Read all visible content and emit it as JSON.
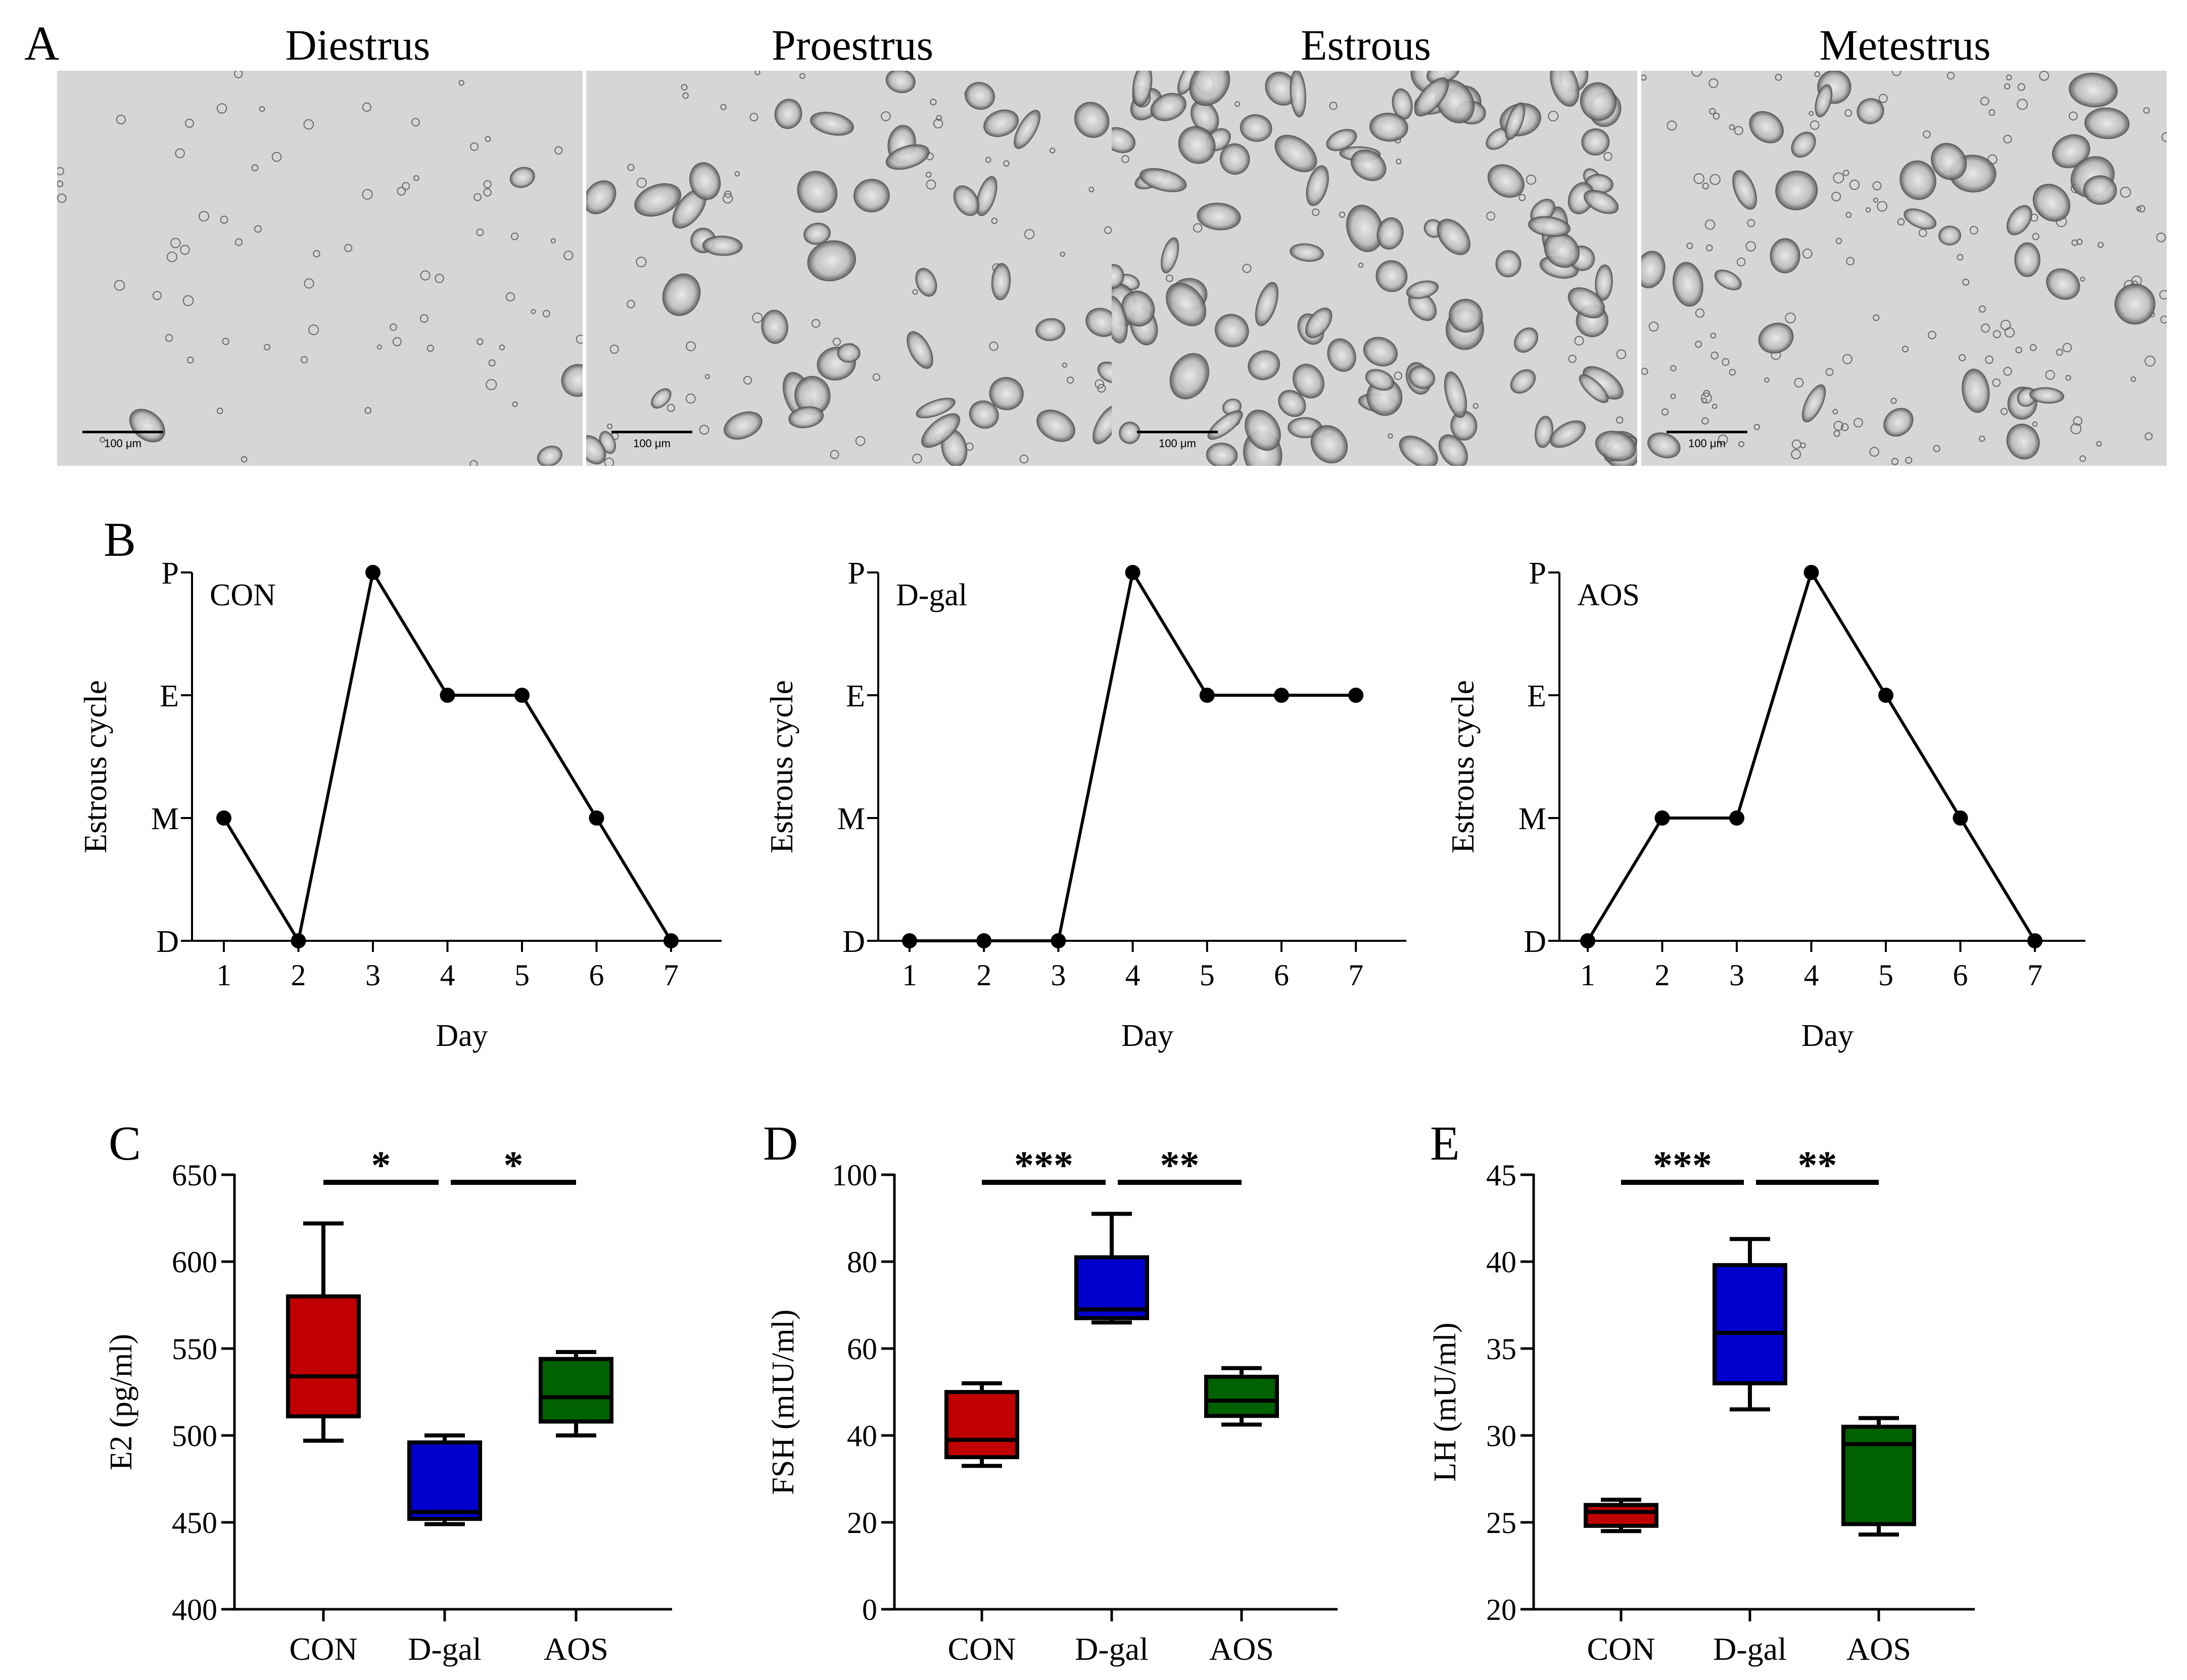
{
  "panel_a": {
    "letter": "A",
    "scale_bar_text": "100 μm",
    "stages": [
      {
        "title": "Diestrus",
        "cell_density": "sparse"
      },
      {
        "title": "Proestrus",
        "cell_density": "clustered"
      },
      {
        "title": "Estrous",
        "cell_density": "dense"
      },
      {
        "title": "Metestrus",
        "cell_density": "mixed"
      }
    ]
  },
  "colors": {
    "CON": "#c00000",
    "D-gal": "#0000cc",
    "AOS": "#006100",
    "microscope_bg": "#d6d6d6"
  },
  "chart_data": [
    {
      "id": "B1",
      "type": "line",
      "panel_letter": "B",
      "group": "CON",
      "xlabel": "Day",
      "ylabel": "Estrous cycle",
      "x": [
        1,
        2,
        3,
        4,
        5,
        6,
        7
      ],
      "y_labels": [
        "D",
        "M",
        "E",
        "P"
      ],
      "values": [
        "M",
        "D",
        "P",
        "E",
        "E",
        "M",
        "D"
      ]
    },
    {
      "id": "B2",
      "type": "line",
      "group": "D-gal",
      "xlabel": "Day",
      "ylabel": "Estrous cycle",
      "x": [
        1,
        2,
        3,
        4,
        5,
        6,
        7
      ],
      "y_labels": [
        "D",
        "M",
        "E",
        "P"
      ],
      "values": [
        "D",
        "D",
        "D",
        "P",
        "E",
        "E",
        "E"
      ]
    },
    {
      "id": "B3",
      "type": "line",
      "group": "AOS",
      "xlabel": "Day",
      "ylabel": "Estrous cycle",
      "x": [
        1,
        2,
        3,
        4,
        5,
        6,
        7
      ],
      "y_labels": [
        "D",
        "M",
        "E",
        "P"
      ],
      "values": [
        "D",
        "M",
        "M",
        "P",
        "E",
        "M",
        "D"
      ]
    },
    {
      "id": "C",
      "type": "box",
      "panel_letter": "C",
      "ylabel": "E2 (pg/ml)",
      "ylim": [
        400,
        650
      ],
      "yticks": [
        400,
        450,
        500,
        550,
        600,
        650
      ],
      "categories": [
        "CON",
        "D-gal",
        "AOS"
      ],
      "boxes": [
        {
          "min": 497,
          "q1": 511,
          "median": 534,
          "q3": 580,
          "max": 622
        },
        {
          "min": 449,
          "q1": 452,
          "median": 456,
          "q3": 496,
          "max": 500
        },
        {
          "min": 500,
          "q1": 508,
          "median": 522,
          "q3": 544,
          "max": 548
        }
      ],
      "significance": [
        {
          "from": 0,
          "to": 1,
          "label": "*"
        },
        {
          "from": 1,
          "to": 2,
          "label": "*"
        }
      ]
    },
    {
      "id": "D",
      "type": "box",
      "panel_letter": "D",
      "ylabel": "FSH (mIU/ml)",
      "ylim": [
        0,
        100
      ],
      "yticks": [
        0,
        20,
        40,
        60,
        80,
        100
      ],
      "categories": [
        "CON",
        "D-gal",
        "AOS"
      ],
      "boxes": [
        {
          "min": 33,
          "q1": 35,
          "median": 39,
          "q3": 50,
          "max": 52
        },
        {
          "min": 66,
          "q1": 67,
          "median": 69,
          "q3": 81,
          "max": 91
        },
        {
          "min": 42.5,
          "q1": 44.5,
          "median": 48,
          "q3": 53.5,
          "max": 55.5
        }
      ],
      "significance": [
        {
          "from": 0,
          "to": 1,
          "label": "***"
        },
        {
          "from": 1,
          "to": 2,
          "label": "**"
        }
      ]
    },
    {
      "id": "E",
      "type": "box",
      "panel_letter": "E",
      "ylabel": "LH (mU/ml)",
      "ylim": [
        20,
        45
      ],
      "yticks": [
        20,
        25,
        30,
        35,
        40,
        45
      ],
      "categories": [
        "CON",
        "D-gal",
        "AOS"
      ],
      "boxes": [
        {
          "min": 24.5,
          "q1": 24.8,
          "median": 25.6,
          "q3": 26.0,
          "max": 26.3
        },
        {
          "min": 31.5,
          "q1": 33.0,
          "median": 35.9,
          "q3": 39.8,
          "max": 41.3
        },
        {
          "min": 24.3,
          "q1": 24.9,
          "median": 29.5,
          "q3": 30.5,
          "max": 31.0
        }
      ],
      "significance": [
        {
          "from": 0,
          "to": 1,
          "label": "***"
        },
        {
          "from": 1,
          "to": 2,
          "label": "**"
        }
      ]
    }
  ]
}
